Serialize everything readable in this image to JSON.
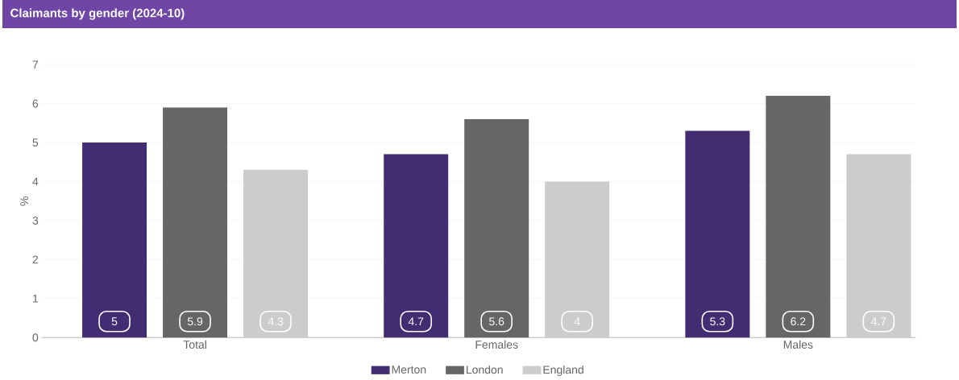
{
  "chart_data": {
    "type": "bar",
    "title": "Claimants by gender (2024-10)",
    "ylabel": "%",
    "categories": [
      "Total",
      "Females",
      "Males"
    ],
    "series": [
      {
        "name": "Merton",
        "color": "#432d72",
        "values": [
          5,
          4.7,
          5.3
        ]
      },
      {
        "name": "London",
        "color": "#666666",
        "values": [
          5.9,
          5.6,
          6.2
        ]
      },
      {
        "name": "England",
        "color": "#cccccc",
        "values": [
          4.3,
          4,
          4.7
        ]
      }
    ],
    "ylim": [
      0,
      7
    ],
    "yticks": [
      0,
      1,
      2,
      3,
      4,
      5,
      6,
      7
    ],
    "grid": "y",
    "legend": "bottom",
    "data_labels": true
  }
}
